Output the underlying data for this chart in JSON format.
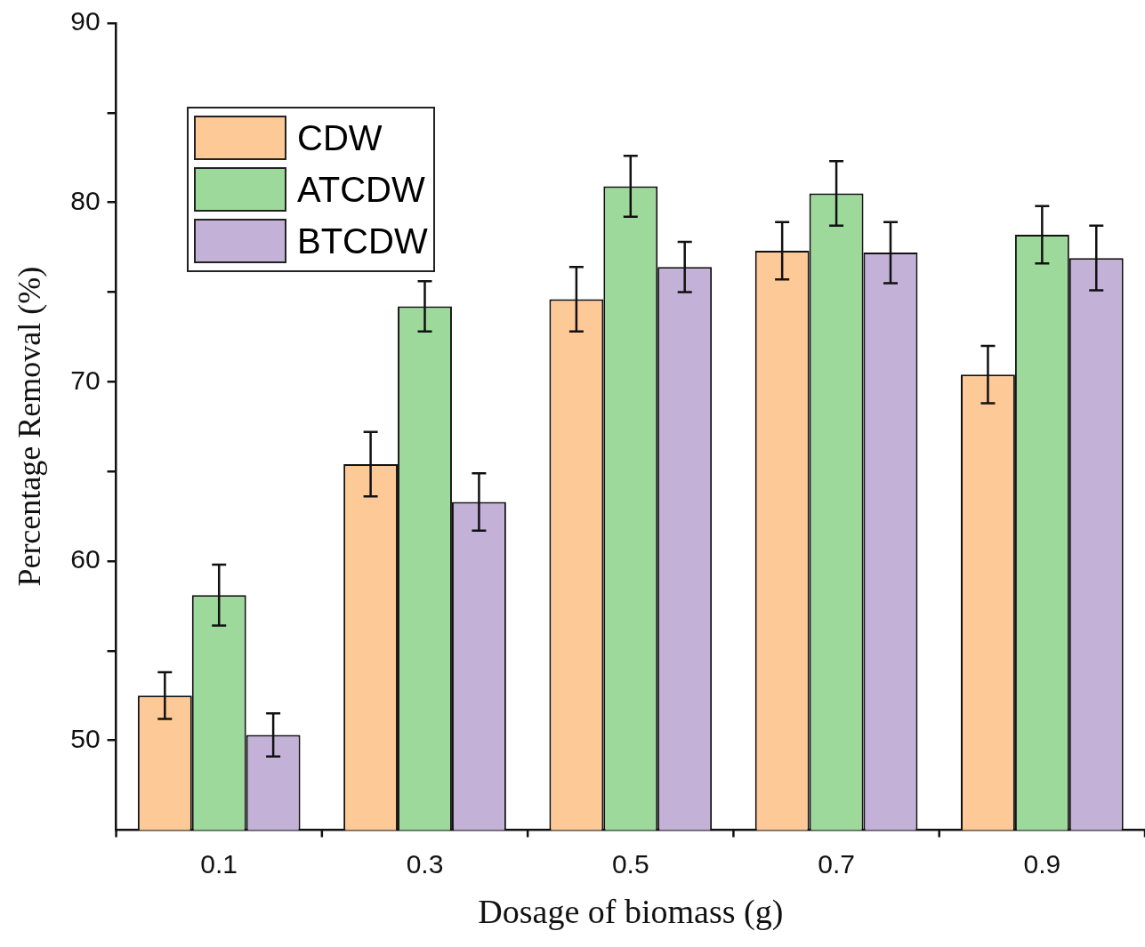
{
  "chart_data": {
    "type": "bar",
    "xlabel": "Dosage of biomass (g)",
    "ylabel": "Percentage Removal (%)",
    "categories": [
      "0.1",
      "0.3",
      "0.5",
      "0.7",
      "0.9"
    ],
    "series": [
      {
        "name": "CDW",
        "color": "#fdc997",
        "values": [
          52.5,
          65.4,
          74.6,
          77.3,
          70.4
        ],
        "errors": [
          1.3,
          1.8,
          1.8,
          1.6,
          1.6
        ]
      },
      {
        "name": "ATCDW",
        "color": "#9ed99c",
        "values": [
          58.1,
          74.2,
          80.9,
          80.5,
          78.2
        ],
        "errors": [
          1.7,
          1.4,
          1.7,
          1.8,
          1.6
        ]
      },
      {
        "name": "BTCDW",
        "color": "#c3b1d8",
        "values": [
          50.3,
          63.3,
          76.4,
          77.2,
          76.9
        ],
        "errors": [
          1.2,
          1.6,
          1.4,
          1.7,
          1.8
        ]
      }
    ],
    "ylim": [
      45,
      90
    ],
    "yticks": [
      50,
      {
        "value": 55,
        "label": null
      },
      60,
      {
        "value": 65,
        "label": null
      },
      70,
      {
        "value": 75,
        "label": null
      },
      80,
      {
        "value": 85,
        "label": null
      },
      90
    ],
    "grid": false,
    "legend": "top left"
  }
}
